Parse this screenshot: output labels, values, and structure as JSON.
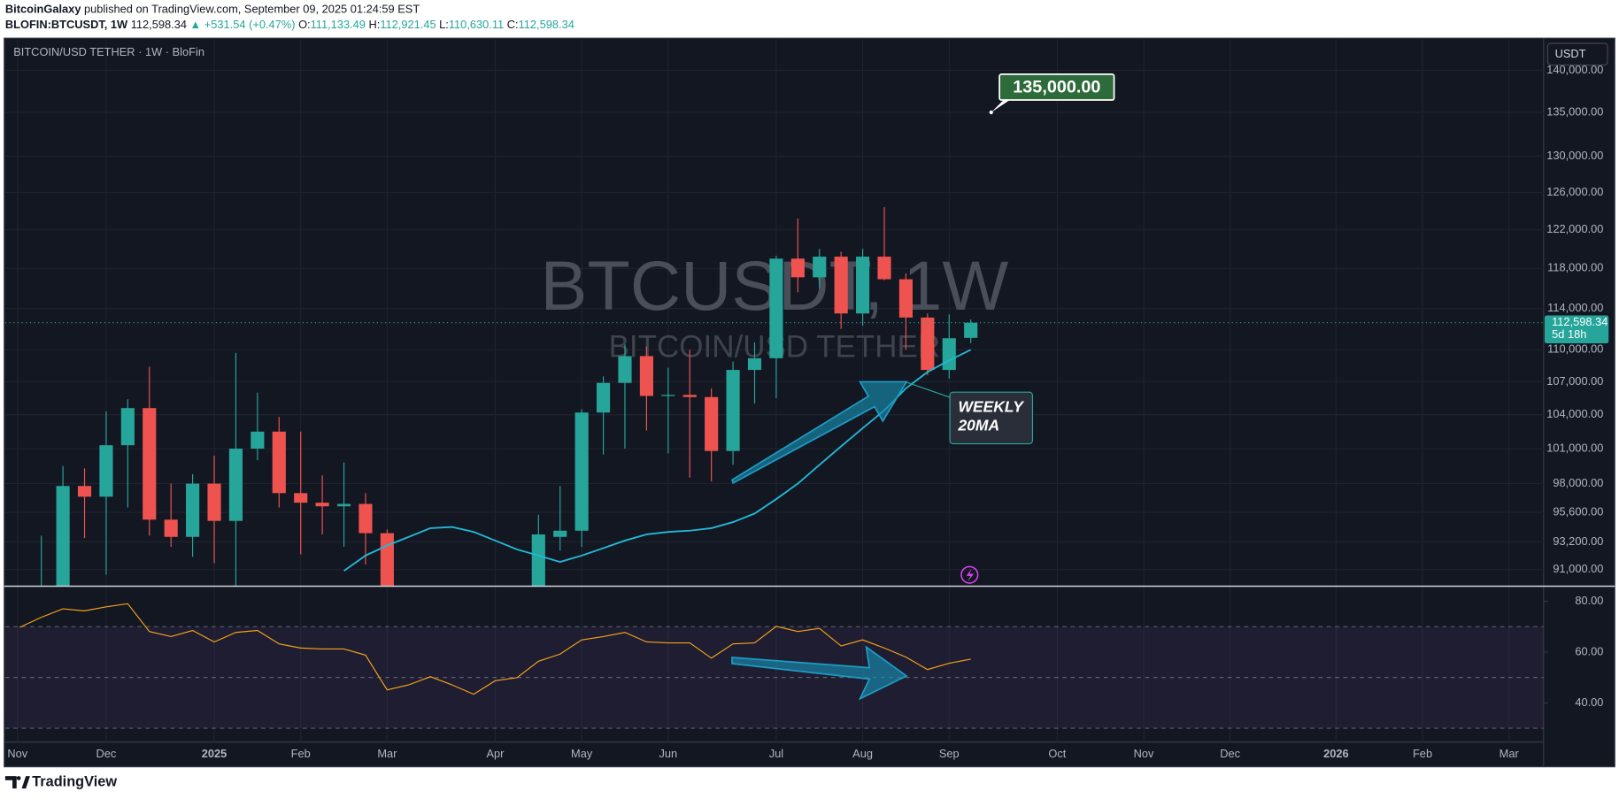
{
  "header": {
    "author": "BitcoinGalaxy",
    "published": " published on TradingView.com, September 09, 2025 01:24:59 EST",
    "symbol": "BLOFIN:BTCUSDT, 1W",
    "price": " 112,598.34",
    "change": " ▲ +531.54 (+0.47%)",
    "ohlc": [
      {
        "key": " O:",
        "value": "111,133.49"
      },
      {
        "key": " H:",
        "value": "112,921.45"
      },
      {
        "key": " L:",
        "value": "110,630.11"
      },
      {
        "key": " C:",
        "value": "112,598.34"
      }
    ]
  },
  "footer": {
    "brand": "TradingView"
  },
  "chart_data": [
    {
      "type": "candlestick",
      "title": "BITCOIN/USD TETHER · 1W · BloFin",
      "watermark": "BTCUSDT, 1W",
      "watermark_sub": "BITCOIN/USD TETHER",
      "currency": "USDT",
      "up_color": "#26a69a",
      "down_color": "#ef5350",
      "log_scale": true,
      "grid": true,
      "x": [
        0,
        1,
        2,
        3,
        4,
        5,
        6,
        7,
        8,
        9,
        10,
        11,
        12,
        13,
        14,
        15,
        16,
        23,
        24,
        25,
        26,
        27,
        28,
        29,
        30,
        31,
        32,
        33,
        34,
        35,
        36,
        37,
        38,
        39,
        40,
        41,
        42,
        43
      ],
      "open": [
        88500,
        82000,
        97800,
        96900,
        101300,
        104600,
        95000,
        93600,
        98000,
        94900,
        101000,
        102500,
        97200,
        96400,
        96100,
        96300,
        93900,
        86000,
        93600,
        94100,
        104200,
        106900,
        109400,
        105700,
        105800,
        105600,
        100800,
        108100,
        109200,
        119000,
        117100,
        119200,
        113500,
        119200,
        116900,
        113100,
        108100,
        111133.49
      ],
      "high": [
        93700,
        99500,
        99300,
        104300,
        105400,
        108400,
        98000,
        98800,
        100400,
        109700,
        106000,
        103800,
        102500,
        98700,
        99800,
        97200,
        94200,
        95400,
        97800,
        104500,
        107500,
        110500,
        110300,
        108300,
        110000,
        106400,
        108900,
        110700,
        119300,
        123200,
        120000,
        119700,
        120000,
        124400,
        117500,
        113500,
        113400,
        112921.45
      ],
      "low": [
        85000,
        78000,
        93500,
        90600,
        96000,
        93700,
        92800,
        92000,
        91500,
        89000,
        100000,
        96000,
        92200,
        93800,
        92800,
        91400,
        78000,
        84000,
        92500,
        92800,
        100500,
        101000,
        102600,
        100600,
        98500,
        98200,
        99600,
        105000,
        105500,
        115600,
        116000,
        112000,
        112300,
        116800,
        110000,
        107600,
        107300,
        110630.11
      ],
      "close": [
        89500,
        97800,
        96900,
        101300,
        104600,
        95000,
        93600,
        98000,
        94900,
        101000,
        102500,
        97200,
        96400,
        96100,
        96300,
        93900,
        84000,
        93800,
        94100,
        104200,
        106900,
        109400,
        105700,
        105800,
        105600,
        100800,
        108100,
        109200,
        119000,
        117100,
        119200,
        113500,
        119200,
        116900,
        113100,
        108100,
        111100,
        112598.34
      ],
      "lines": [
        {
          "color": "#22b8d6",
          "x": [
            14,
            15,
            16,
            17,
            18,
            19,
            20,
            21,
            22,
            23,
            24,
            25,
            26,
            27,
            28,
            29,
            30,
            31,
            32,
            33,
            34,
            35,
            36,
            37,
            38,
            39,
            40,
            41,
            42,
            43
          ],
          "values": [
            90900,
            92100,
            92900,
            93600,
            94300,
            94400,
            94000,
            93300,
            92600,
            92100,
            91600,
            92100,
            92700,
            93300,
            93800,
            94000,
            94100,
            94300,
            94800,
            95500,
            96700,
            98000,
            99600,
            101200,
            102800,
            104400,
            106400,
            107900,
            109000,
            110000
          ]
        }
      ],
      "last_label": "112,598.34",
      "countdown": "5d 18h",
      "annotations": [
        {
          "text": "135,000.00",
          "y": 135000
        },
        {
          "text": [
            "WEEKLY",
            "20MA"
          ]
        }
      ],
      "xlim": [
        -1.67,
        69.5
      ],
      "ylim": [
        89700,
        143800
      ],
      "xticks": [
        {
          "value": -1.1,
          "label": "Nov"
        },
        {
          "value": 3.0,
          "label": "Dec"
        },
        {
          "value": 8.0,
          "label": "2025"
        },
        {
          "value": 12.0,
          "label": "Feb"
        },
        {
          "value": 16.0,
          "label": "Mar"
        },
        {
          "value": 21.0,
          "label": "Apr"
        },
        {
          "value": 25.0,
          "label": "May"
        },
        {
          "value": 29.0,
          "label": "Jun"
        },
        {
          "value": 34.0,
          "label": "Jul"
        },
        {
          "value": 38.0,
          "label": "Aug"
        },
        {
          "value": 42.0,
          "label": "Sep"
        },
        {
          "value": 47.0,
          "label": "Oct"
        },
        {
          "value": 51.0,
          "label": "Nov"
        },
        {
          "value": 55.0,
          "label": "Dec"
        },
        {
          "value": 59.9,
          "label": "2026"
        },
        {
          "value": 63.9,
          "label": "Feb"
        },
        {
          "value": 67.9,
          "label": "Mar"
        }
      ],
      "yticks": [
        {
          "value": 91000,
          "label": "91,000.00"
        },
        {
          "value": 93200,
          "label": "93,200.00"
        },
        {
          "value": 95600,
          "label": "95,600.00"
        },
        {
          "value": 98000,
          "label": "98,000.00"
        },
        {
          "value": 101000,
          "label": "101,000.00"
        },
        {
          "value": 104000,
          "label": "104,000.00"
        },
        {
          "value": 107000,
          "label": "107,000.00"
        },
        {
          "value": 110000,
          "label": "110,000.00"
        },
        {
          "value": 114000,
          "label": "114,000.00"
        },
        {
          "value": 118000,
          "label": "118,000.00"
        },
        {
          "value": 122000,
          "label": "122,000.00"
        },
        {
          "value": 126000,
          "label": "126,000.00"
        },
        {
          "value": 130000,
          "label": "130,000.00"
        },
        {
          "value": 135000,
          "label": "135,000.00"
        },
        {
          "value": 140000,
          "label": "140,000.00"
        }
      ]
    },
    {
      "type": "line",
      "color": "#f7a21b",
      "band": [
        30,
        70
      ],
      "band_color": "#7e57c2",
      "levels": [
        70,
        50,
        30
      ],
      "x": [
        -1,
        0,
        1,
        2,
        3,
        4,
        5,
        6,
        7,
        8,
        9,
        10,
        11,
        12,
        13,
        14,
        15,
        16,
        17,
        18,
        19,
        20,
        21,
        22,
        23,
        24,
        25,
        26,
        27,
        28,
        29,
        30,
        31,
        32,
        33,
        34,
        35,
        36,
        37,
        38,
        39,
        40,
        41,
        42,
        43
      ],
      "values": [
        69.7,
        73.7,
        77.0,
        76.2,
        77.8,
        79.0,
        68.1,
        66.1,
        68.5,
        64.0,
        67.7,
        68.5,
        63.2,
        61.6,
        61.2,
        61.2,
        58.8,
        45.1,
        47.1,
        50.3,
        47.1,
        43.4,
        48.7,
        49.9,
        56.4,
        59.2,
        64.8,
        66.1,
        67.7,
        64.0,
        63.6,
        63.6,
        57.6,
        63.2,
        63.6,
        70.1,
        68.1,
        69.3,
        62.4,
        64.8,
        61.6,
        58.0,
        53.1,
        55.6,
        57.2
      ],
      "xlim": [
        -1.67,
        69.5
      ],
      "ylim": [
        25,
        85.5
      ],
      "yticks": [
        {
          "value": 80,
          "label": "80.00"
        },
        {
          "value": 60,
          "label": "60.00"
        },
        {
          "value": 40,
          "label": "40.00"
        }
      ]
    }
  ]
}
